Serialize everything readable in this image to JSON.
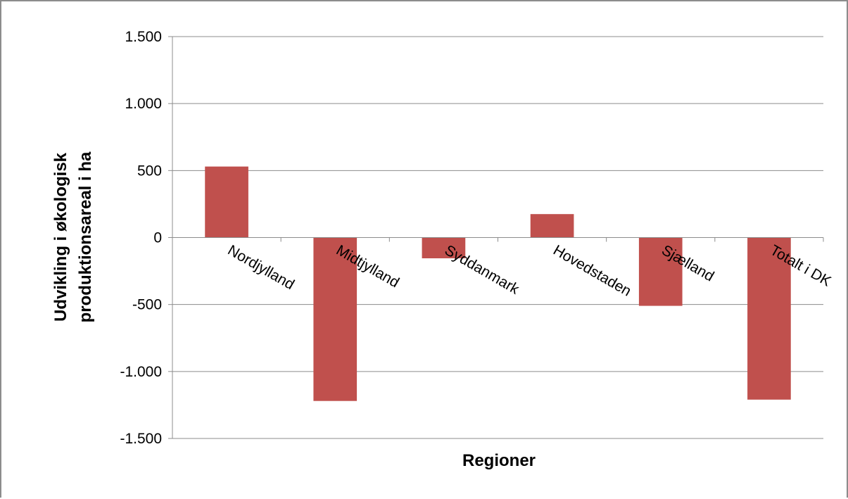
{
  "chart_data": {
    "type": "bar",
    "title": "",
    "xlabel": "Regioner",
    "ylabel": "Udvikling i økologisk produktionsareal i ha",
    "ylabel_lines": [
      "Udvikling i økologisk",
      "produktionsareal i ha"
    ],
    "categories": [
      "Nordjylland",
      "Midtjylland",
      "Syddanmark",
      "Hovedstaden",
      "Sjælland",
      "Totalt i DK"
    ],
    "values": [
      530,
      -1220,
      -155,
      175,
      -510,
      -1210
    ],
    "ylim": [
      -1500,
      1500
    ],
    "yticks": [
      1500,
      1000,
      500,
      0,
      -500,
      -1000,
      -1500
    ],
    "ytick_labels": [
      "1.500",
      "1.000",
      "500",
      "0",
      "-500",
      "-1.000",
      "-1.500"
    ],
    "grid": true,
    "legend": "none",
    "bar_color": "#c0504d",
    "grid_color": "#8c8c8c"
  }
}
